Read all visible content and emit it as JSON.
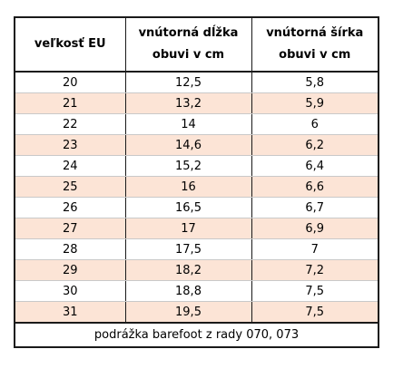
{
  "table": {
    "headers": [
      "veľkosť EU",
      "vnútorná dĺžka obuvi v cm",
      "vnútorná šírka obuvi v cm"
    ],
    "rows": [
      [
        "20",
        "12,5",
        "5,8"
      ],
      [
        "21",
        "13,2",
        "5,9"
      ],
      [
        "22",
        "14",
        "6"
      ],
      [
        "23",
        "14,6",
        "6,2"
      ],
      [
        "24",
        "15,2",
        "6,4"
      ],
      [
        "25",
        "16",
        "6,6"
      ],
      [
        "26",
        "16,5",
        "6,7"
      ],
      [
        "27",
        "17",
        "6,9"
      ],
      [
        "28",
        "17,5",
        "7"
      ],
      [
        "29",
        "18,2",
        "7,2"
      ],
      [
        "30",
        "18,8",
        "7,5"
      ],
      [
        "31",
        "19,5",
        "7,5"
      ]
    ],
    "footnote": "podrážka barefoot z rady 070, 073"
  },
  "colors": {
    "stripe": "#fce4d6",
    "border": "#1a1a1a"
  }
}
